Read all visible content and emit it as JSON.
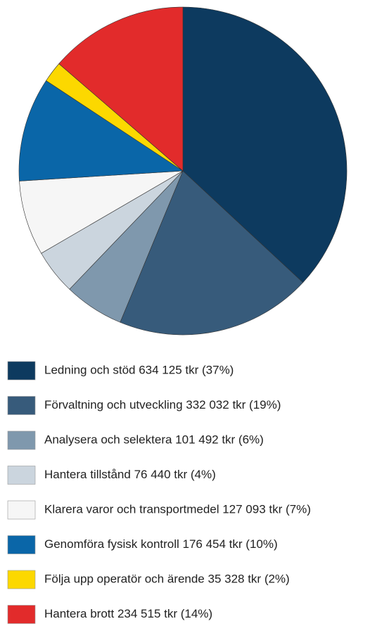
{
  "chart_data": {
    "type": "pie",
    "categories": [
      "Ledning och stöd 634 125 tkr (37%)",
      "Förvaltning och utveckling 332 032 tkr (19%)",
      "Analysera och selektera 101 492 tkr (6%)",
      "Hantera tillstånd 76 440 tkr (4%)",
      "Klarera varor och transportmedel 127 093 tkr (7%)",
      "Genomföra fysisk kontroll 176 454 tkr (10%)",
      "Följa upp operatör och ärende 35 328 tkr (2%)",
      "Hantera brott 234 515 tkr (14%)"
    ],
    "values": [
      634125,
      332032,
      101492,
      76440,
      127093,
      176454,
      35328,
      234515
    ],
    "colors": [
      "#0d3a5f",
      "#375b7b",
      "#7f98ad",
      "#cbd5de",
      "#f6f6f6",
      "#0a66a8",
      "#fcd800",
      "#e22b2b"
    ]
  }
}
